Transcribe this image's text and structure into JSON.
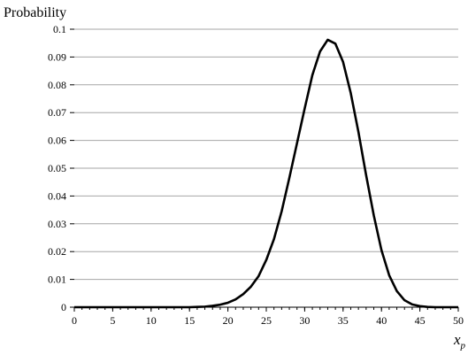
{
  "chart_data": {
    "type": "line",
    "title": "",
    "ylabel": "Probability",
    "xlabel": "x",
    "xlabel_sub": "p",
    "xlim": [
      0,
      50
    ],
    "ylim": [
      0,
      0.1
    ],
    "x_ticks": [
      "0",
      "5",
      "10",
      "15",
      "20",
      "25",
      "30",
      "35",
      "40",
      "45",
      "50"
    ],
    "y_ticks": [
      "0",
      "0.01",
      "0.02",
      "0.03",
      "0.04",
      "0.05",
      "0.06",
      "0.07",
      "0.08",
      "0.09",
      "0.1"
    ],
    "grid": "horizontal",
    "legend": "none",
    "line_color": "#000000",
    "grid_color": "#a6a6a6",
    "series": [
      {
        "x": [
          0,
          1,
          2,
          3,
          4,
          5,
          6,
          7,
          8,
          9,
          10,
          11,
          12,
          13,
          14,
          15,
          16,
          17,
          18,
          19,
          20,
          21,
          22,
          23,
          24,
          25,
          26,
          27,
          28,
          29,
          30,
          31,
          32,
          33,
          34,
          35,
          36,
          37,
          38,
          39,
          40,
          41,
          42,
          43,
          44,
          45,
          46,
          47,
          48,
          49,
          50
        ],
        "values": [
          0,
          0,
          0,
          0,
          0,
          0,
          0,
          0,
          0,
          0,
          0,
          0,
          0,
          0,
          0,
          0,
          0.0001,
          0.0002,
          0.0005,
          0.0009,
          0.0016,
          0.0028,
          0.0047,
          0.0074,
          0.0112,
          0.017,
          0.0245,
          0.0345,
          0.0465,
          0.059,
          0.0715,
          0.0835,
          0.092,
          0.0962,
          0.0948,
          0.0882,
          0.077,
          0.063,
          0.0475,
          0.033,
          0.0205,
          0.0115,
          0.0058,
          0.0025,
          0.001,
          0.0004,
          0.0001,
          0,
          0,
          0,
          0
        ]
      }
    ]
  }
}
